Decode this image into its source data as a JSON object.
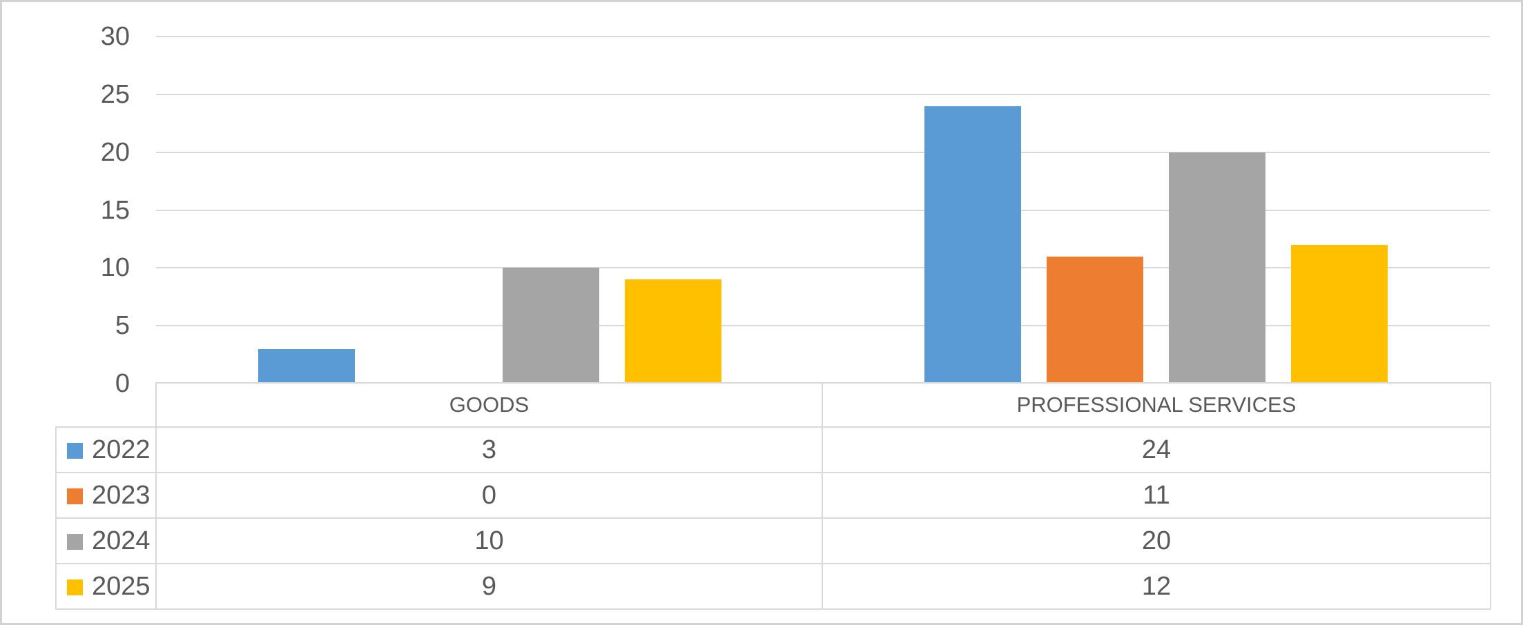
{
  "chart_data": {
    "type": "bar",
    "title": "",
    "xlabel": "",
    "ylabel": "",
    "categories": [
      "GOODS",
      "PROFESSIONAL SERVICES"
    ],
    "series": [
      {
        "name": "2022",
        "color": "#5B9BD5",
        "values": [
          3,
          24
        ]
      },
      {
        "name": "2023",
        "color": "#ED7D31",
        "values": [
          0,
          11
        ]
      },
      {
        "name": "2024",
        "color": "#A5A5A5",
        "values": [
          10,
          20
        ]
      },
      {
        "name": "2025",
        "color": "#FFC000",
        "values": [
          9,
          12
        ]
      }
    ],
    "ylim": [
      0,
      30
    ],
    "yticks": [
      0,
      5,
      10,
      15,
      20,
      25,
      30
    ],
    "grid": true,
    "legend_position": "left-of-data-table",
    "data_table_shown": true
  },
  "colors": {
    "background": "#FFFFFF",
    "text": "#595959",
    "gridline": "#D9D9D9",
    "table_border": "#D9D9D9",
    "frame_border": "#D2D2D2"
  }
}
